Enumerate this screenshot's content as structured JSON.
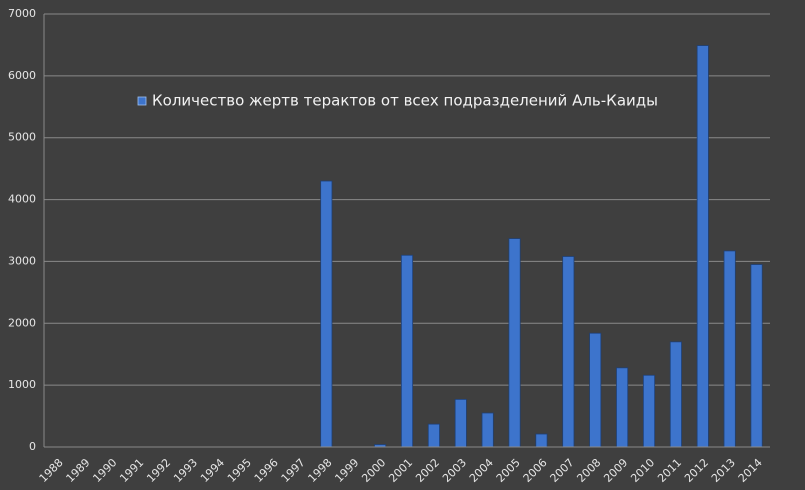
{
  "chart_data": {
    "type": "bar",
    "categories": [
      "1988",
      "1989",
      "1990",
      "1991",
      "1992",
      "1993",
      "1994",
      "1995",
      "1996",
      "1997",
      "1998",
      "1999",
      "2000",
      "2001",
      "2002",
      "2003",
      "2004",
      "2005",
      "2006",
      "2007",
      "2008",
      "2009",
      "2010",
      "2011",
      "2012",
      "2013",
      "2014"
    ],
    "series": [
      {
        "name": "Количество жертв терактов от всех подразделений Аль-Каиды",
        "color": "#3d74cc",
        "values": [
          0,
          0,
          0,
          0,
          0,
          0,
          0,
          0,
          0,
          0,
          4300,
          0,
          40,
          3100,
          370,
          770,
          550,
          3370,
          210,
          3080,
          1840,
          1280,
          1160,
          1700,
          6490,
          3170,
          2950
        ]
      }
    ],
    "ylim": [
      0,
      7000
    ],
    "yticks": [
      0,
      1000,
      2000,
      3000,
      4000,
      5000,
      6000,
      7000
    ],
    "grid": true,
    "legend": "top"
  }
}
